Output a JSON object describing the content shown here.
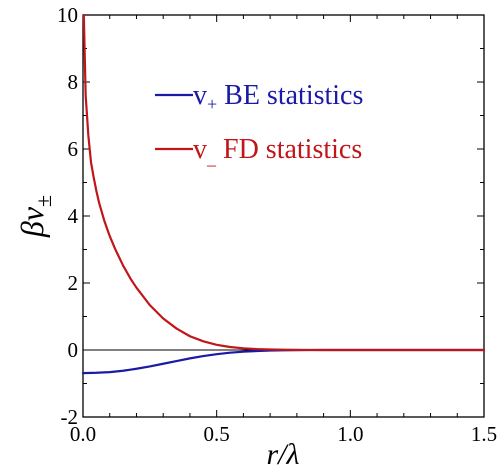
{
  "chart_data": {
    "type": "line",
    "xlabel": "r/λ",
    "ylabel_main": "βv",
    "ylabel_sub": "±",
    "xlim": [
      0.0,
      1.5
    ],
    "ylim": [
      -2,
      10
    ],
    "x_ticks": [
      0.0,
      0.5,
      1.0,
      1.5
    ],
    "x_tick_labels": [
      "0.0",
      "0.5",
      "1.0",
      "1.5"
    ],
    "y_ticks": [
      -2,
      0,
      2,
      4,
      6,
      8,
      10
    ],
    "y_tick_labels": [
      "-2",
      "0",
      "2",
      "4",
      "6",
      "8",
      "10"
    ],
    "zero_line": true,
    "grid": false,
    "legend_position": "top-right",
    "series": [
      {
        "legend_main": "v",
        "legend_sub": "+",
        "legend_text": " BE statistics",
        "color": "#1a1aa6",
        "x": [
          0.0,
          0.05,
          0.1,
          0.15,
          0.2,
          0.25,
          0.3,
          0.35,
          0.4,
          0.45,
          0.5,
          0.55,
          0.6,
          0.65,
          0.7,
          0.75,
          0.8,
          0.85,
          0.9,
          0.95,
          1.0,
          1.1,
          1.2,
          1.3,
          1.4,
          1.5
        ],
        "y": [
          -0.69,
          -0.68,
          -0.66,
          -0.62,
          -0.56,
          -0.49,
          -0.41,
          -0.33,
          -0.25,
          -0.18,
          -0.125,
          -0.08,
          -0.05,
          -0.03,
          -0.017,
          -0.009,
          -0.004,
          -0.002,
          -0.001,
          -0.0004,
          -0.0002,
          0.0,
          0.0,
          0.0,
          0.0,
          0.0
        ]
      },
      {
        "legend_main": "v",
        "legend_sub": "_",
        "legend_text": " FD statistics",
        "color": "#c0161a",
        "x": [
          0.003,
          0.01,
          0.02,
          0.03,
          0.04,
          0.05,
          0.06,
          0.08,
          0.1,
          0.12,
          0.15,
          0.18,
          0.2,
          0.25,
          0.3,
          0.35,
          0.4,
          0.45,
          0.5,
          0.55,
          0.6,
          0.65,
          0.7,
          0.75,
          0.8,
          0.85,
          0.9,
          0.95,
          1.0,
          1.1,
          1.2,
          1.3,
          1.4,
          1.5
        ],
        "y": [
          10.0,
          7.6,
          6.4,
          5.6,
          5.15,
          4.75,
          4.4,
          3.85,
          3.4,
          3.02,
          2.52,
          2.1,
          1.86,
          1.34,
          0.94,
          0.64,
          0.41,
          0.26,
          0.155,
          0.09,
          0.05,
          0.028,
          0.015,
          0.008,
          0.004,
          0.002,
          0.001,
          0.0005,
          0.0002,
          0.0,
          0.0,
          0.0,
          0.0,
          0.0
        ]
      }
    ]
  }
}
